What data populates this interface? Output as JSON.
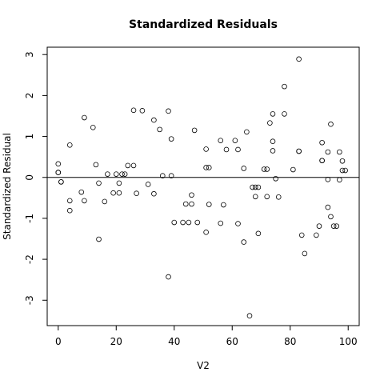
{
  "chart_data": {
    "type": "scatter",
    "title": "Standardized Residuals",
    "xlabel": "V2",
    "ylabel": "Standardized Residual",
    "xlim": [
      -3.8,
      103.8
    ],
    "ylim": [
      -3.62,
      3.18
    ],
    "xticks": [
      0,
      20,
      40,
      60,
      80,
      100
    ],
    "yticks": [
      -3,
      -2,
      -1,
      0,
      1,
      2,
      3
    ],
    "xtick_labels": [
      "0",
      "20",
      "40",
      "60",
      "80",
      "100"
    ],
    "ytick_labels": [
      "-3",
      "-2",
      "-1",
      "0",
      "1",
      "2",
      "3"
    ],
    "reference_line_y": 0,
    "grid": false,
    "marker": "open-circle",
    "points": [
      [
        0,
        0.33
      ],
      [
        0,
        0.12
      ],
      [
        0,
        0.12
      ],
      [
        1,
        -0.11
      ],
      [
        1,
        -0.11
      ],
      [
        4,
        0.79
      ],
      [
        4,
        -0.57
      ],
      [
        4,
        -0.81
      ],
      [
        8,
        -0.36
      ],
      [
        9,
        1.46
      ],
      [
        9,
        -0.57
      ],
      [
        12,
        1.22
      ],
      [
        13,
        0.31
      ],
      [
        14,
        -0.14
      ],
      [
        14,
        -1.51
      ],
      [
        16,
        -0.59
      ],
      [
        17,
        0.08
      ],
      [
        19,
        -0.38
      ],
      [
        20,
        0.08
      ],
      [
        21,
        -0.14
      ],
      [
        21,
        -0.38
      ],
      [
        22,
        0.08
      ],
      [
        23,
        0.08
      ],
      [
        24,
        0.29
      ],
      [
        26,
        1.64
      ],
      [
        26,
        0.29
      ],
      [
        27,
        -0.39
      ],
      [
        29,
        1.63
      ],
      [
        31,
        -0.17
      ],
      [
        33,
        1.4
      ],
      [
        33,
        -0.4
      ],
      [
        35,
        1.17
      ],
      [
        36,
        0.04
      ],
      [
        38,
        1.62
      ],
      [
        38,
        -2.43
      ],
      [
        39,
        0.94
      ],
      [
        39,
        0.04
      ],
      [
        40,
        -1.1
      ],
      [
        43,
        -1.1
      ],
      [
        44,
        -0.65
      ],
      [
        45,
        -1.1
      ],
      [
        46,
        -0.43
      ],
      [
        46,
        -0.65
      ],
      [
        47,
        1.15
      ],
      [
        48,
        -1.1
      ],
      [
        51,
        0.69
      ],
      [
        51,
        0.24
      ],
      [
        51,
        -1.34
      ],
      [
        52,
        0.24
      ],
      [
        52,
        -0.66
      ],
      [
        56,
        0.9
      ],
      [
        56,
        -1.12
      ],
      [
        57,
        -0.67
      ],
      [
        58,
        0.68
      ],
      [
        61,
        0.9
      ],
      [
        62,
        0.68
      ],
      [
        62,
        -1.13
      ],
      [
        64,
        0.22
      ],
      [
        64,
        -1.58
      ],
      [
        65,
        1.11
      ],
      [
        66,
        -3.38
      ],
      [
        67,
        -0.24
      ],
      [
        68,
        -0.24
      ],
      [
        68,
        -0.47
      ],
      [
        69,
        -0.24
      ],
      [
        69,
        -1.37
      ],
      [
        71,
        0.2
      ],
      [
        72,
        0.2
      ],
      [
        72,
        -0.47
      ],
      [
        73,
        1.33
      ],
      [
        74,
        1.55
      ],
      [
        74,
        0.88
      ],
      [
        74,
        0.65
      ],
      [
        75,
        -0.03
      ],
      [
        76,
        -0.48
      ],
      [
        78,
        2.22
      ],
      [
        78,
        1.55
      ],
      [
        81,
        0.19
      ],
      [
        83,
        2.89
      ],
      [
        83,
        0.64
      ],
      [
        83,
        0.64
      ],
      [
        84,
        -1.41
      ],
      [
        85,
        -1.86
      ],
      [
        89,
        -1.41
      ],
      [
        90,
        -1.19
      ],
      [
        91,
        0.85
      ],
      [
        91,
        0.41
      ],
      [
        91,
        0.41
      ],
      [
        93,
        0.62
      ],
      [
        93,
        -0.05
      ],
      [
        93,
        -0.73
      ],
      [
        94,
        1.3
      ],
      [
        94,
        -0.96
      ],
      [
        95,
        -1.19
      ],
      [
        96,
        -1.19
      ],
      [
        97,
        0.62
      ],
      [
        97,
        -0.06
      ],
      [
        98,
        0.4
      ],
      [
        98,
        0.17
      ],
      [
        99,
        0.17
      ]
    ]
  }
}
